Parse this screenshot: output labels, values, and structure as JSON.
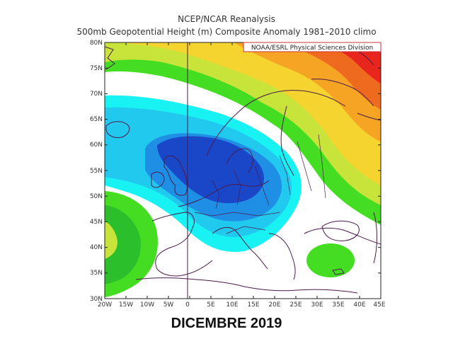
{
  "header": {
    "title": "NCEP/NCAR Reanalysis",
    "subtitle": "500mb Geopotential Height (m) Composite Anomaly 1981–2010 climo"
  },
  "credit": "NOAA/ESRL Physical Sciences Division",
  "axes": {
    "lat_labels": [
      "80N",
      "75N",
      "70N",
      "65N",
      "60N",
      "55N",
      "50N",
      "45N",
      "40N",
      "35N",
      "30N"
    ],
    "lon_labels": [
      "20W",
      "15W",
      "10W",
      "5W",
      "0",
      "5E",
      "10E",
      "15E",
      "20E",
      "25E",
      "30E",
      "35E",
      "40E",
      "45E"
    ]
  },
  "caption": "DICEMBRE 2019",
  "colors": {
    "deep_blue": "#1a46c8",
    "mid_blue": "#1f8fe6",
    "light_blue": "#22c9ee",
    "cyan": "#18f2f2",
    "light_green": "#44dd22",
    "green": "#2bbf2b",
    "yellow_green": "#c8e43a",
    "yellow": "#f5d430",
    "orange": "#f5a423",
    "dark_orange": "#ee6a1f",
    "red": "#e8261e",
    "coast": "#4a1a4a"
  }
}
